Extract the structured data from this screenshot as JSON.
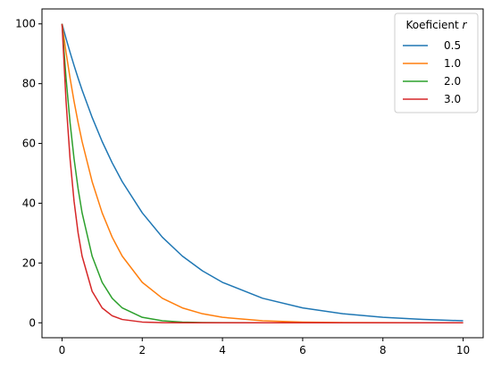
{
  "chart_data": {
    "type": "line",
    "title": "",
    "xlabel": "",
    "ylabel": "",
    "xlim": [
      -0.5,
      10.5
    ],
    "ylim": [
      -5,
      105
    ],
    "x_ticks": [
      0,
      2,
      4,
      6,
      8,
      10
    ],
    "y_ticks": [
      0,
      20,
      40,
      60,
      80,
      100
    ],
    "grid": false,
    "legend": {
      "title_prefix": "Koeficient ",
      "title_symbol": "r",
      "placement": "top-right"
    },
    "x": [
      0,
      0.1,
      0.2,
      0.3,
      0.4,
      0.5,
      0.75,
      1,
      1.25,
      1.5,
      2,
      2.5,
      3,
      3.5,
      4,
      5,
      6,
      7,
      8,
      9,
      10
    ],
    "series": [
      {
        "name": "0.5",
        "color": "#1f77b4",
        "values": [
          100,
          95.12,
          90.48,
          86.07,
          81.87,
          77.88,
          68.73,
          60.65,
          53.53,
          47.24,
          36.79,
          28.65,
          22.31,
          17.38,
          13.53,
          8.21,
          4.98,
          3.02,
          1.83,
          1.11,
          0.67
        ]
      },
      {
        "name": "1.0",
        "color": "#ff7f0e",
        "values": [
          100,
          90.48,
          81.87,
          74.08,
          67.03,
          60.65,
          47.24,
          36.79,
          28.65,
          22.31,
          13.53,
          8.21,
          4.98,
          3.02,
          1.83,
          0.67,
          0.25,
          0.09,
          0.03,
          0.01,
          0.0
        ]
      },
      {
        "name": "2.0",
        "color": "#2ca02c",
        "values": [
          100,
          81.87,
          67.03,
          54.88,
          44.93,
          36.79,
          22.31,
          13.53,
          8.21,
          4.98,
          1.83,
          0.67,
          0.25,
          0.09,
          0.03,
          0.0,
          0.0,
          0.0,
          0.0,
          0.0,
          0.0
        ]
      },
      {
        "name": "3.0",
        "color": "#d62728",
        "values": [
          100,
          74.08,
          54.88,
          40.66,
          30.12,
          22.31,
          10.54,
          4.98,
          2.35,
          1.11,
          0.25,
          0.06,
          0.01,
          0.0,
          0.0,
          0.0,
          0.0,
          0.0,
          0.0,
          0.0,
          0.0
        ]
      }
    ]
  }
}
